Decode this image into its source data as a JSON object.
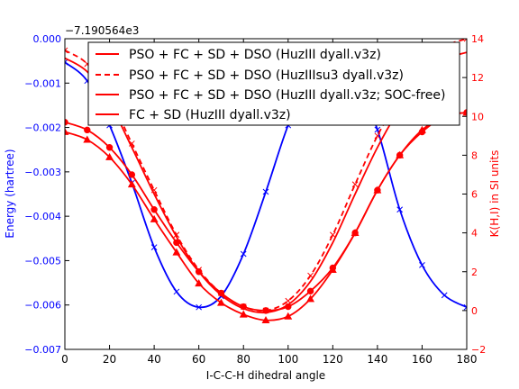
{
  "chart_data": {
    "type": "line",
    "offset_label": "−7.190564e3",
    "title": "",
    "xlabel": "I-C-C-H dihedral angle",
    "ylabel_left": "Energy (hartree)",
    "ylabel_right": "K(H,I) in SI units",
    "xlim": [
      0,
      180
    ],
    "ylim_left": [
      -0.007,
      0.0
    ],
    "ylim_right": [
      -2,
      14
    ],
    "x_ticks": [
      0,
      20,
      40,
      60,
      80,
      100,
      120,
      140,
      160,
      180
    ],
    "y_left_ticks": [
      -0.007,
      -0.006,
      -0.005,
      -0.004,
      -0.003,
      -0.002,
      -0.001,
      0.0
    ],
    "y_left_tick_labels": [
      "−0.007",
      "−0.006",
      "−0.005",
      "−0.004",
      "−0.003",
      "−0.002",
      "−0.001",
      "0.000"
    ],
    "y_right_ticks": [
      -2,
      0,
      2,
      4,
      6,
      8,
      10,
      12,
      14
    ],
    "y_right_tick_labels": [
      "−2",
      "0",
      "2",
      "4",
      "6",
      "8",
      "10",
      "12",
      "14"
    ],
    "grid": false,
    "legend_placement": "top-center",
    "colors": {
      "energy": "#0000ff",
      "coupling": "#ff0000",
      "axis": "#000000"
    },
    "energy_series": {
      "axis": "left",
      "color": "#0000ff",
      "marker": "x",
      "x": [
        0,
        10,
        20,
        30,
        40,
        50,
        60,
        70,
        80,
        90,
        100,
        110,
        120,
        130,
        140,
        150,
        160,
        170,
        180
      ],
      "y": [
        -0.00053,
        -0.00095,
        -0.00195,
        -0.00325,
        -0.0047,
        -0.0057,
        -0.00605,
        -0.0058,
        -0.00485,
        -0.00345,
        -0.00195,
        -0.00085,
        -0.00045,
        -0.00085,
        -0.00205,
        -0.00385,
        -0.0051,
        -0.00578,
        -0.00605
      ]
    },
    "series": [
      {
        "name": "PSO + FC + SD + DSO (HuzIII dyall.v3z)",
        "axis": "right",
        "color": "#ff0000",
        "dash": "solid",
        "marker": "",
        "x": [
          0,
          10,
          20,
          30,
          40,
          50,
          60,
          70,
          80,
          90,
          100,
          110,
          120,
          130,
          140,
          150,
          160,
          170,
          180
        ],
        "y": [
          13.0,
          12.3,
          10.7,
          8.4,
          6.0,
          3.8,
          2.0,
          0.8,
          0.1,
          -0.1,
          0.3,
          1.5,
          3.5,
          6.0,
          8.4,
          10.4,
          11.9,
          12.9,
          13.3
        ]
      },
      {
        "name": "PSO + FC + SD + DSO (HuzIIIsu3 dyall.v3z)",
        "axis": "right",
        "color": "#ff0000",
        "dash": "dashed",
        "marker": "x",
        "x": [
          0,
          10,
          20,
          30,
          40,
          50,
          60,
          70,
          80,
          90,
          100,
          110,
          120,
          130,
          140,
          150,
          160,
          170,
          180
        ],
        "y": [
          13.4,
          12.7,
          11.0,
          8.6,
          6.2,
          3.9,
          2.1,
          0.9,
          0.2,
          0.0,
          0.5,
          1.8,
          3.9,
          6.5,
          9.0,
          11.0,
          12.6,
          13.6,
          14.0
        ]
      },
      {
        "name": "PSO + FC + SD + DSO (HuzIII dyall.v3z; SOC-free)",
        "axis": "right",
        "color": "#ff0000",
        "dash": "solid",
        "marker": "o",
        "x": [
          0,
          10,
          20,
          30,
          40,
          50,
          60,
          70,
          80,
          90,
          100,
          110,
          120,
          130,
          140,
          150,
          160,
          170,
          180
        ],
        "y": [
          9.7,
          9.3,
          8.4,
          7.0,
          5.2,
          3.5,
          2.0,
          0.9,
          0.2,
          0.0,
          0.2,
          1.0,
          2.2,
          4.0,
          6.2,
          8.0,
          9.2,
          10.0,
          10.2
        ]
      },
      {
        "name": "FC + SD (HuzIII dyall.v3z)",
        "axis": "right",
        "color": "#ff0000",
        "dash": "solid",
        "marker": "^",
        "x": [
          0,
          10,
          20,
          30,
          40,
          50,
          60,
          70,
          80,
          90,
          100,
          110,
          120,
          130,
          140,
          150,
          160,
          170,
          180
        ],
        "y": [
          9.2,
          8.8,
          7.9,
          6.5,
          4.7,
          3.0,
          1.4,
          0.4,
          -0.2,
          -0.5,
          -0.3,
          0.6,
          2.1,
          4.0,
          6.2,
          8.0,
          9.3,
          10.0,
          10.2
        ]
      }
    ]
  }
}
